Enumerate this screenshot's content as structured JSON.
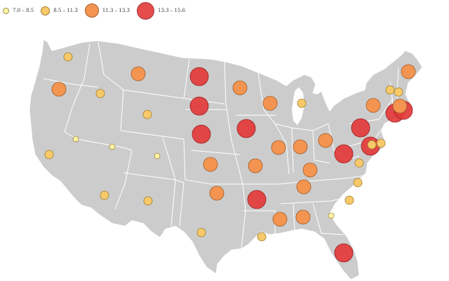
{
  "legend": {
    "items": [
      {
        "label": "7.0 – 8.5",
        "color": "#fff3a8",
        "stroke": "#9c8a3c"
      },
      {
        "label": "8.5 – 11.3",
        "color": "#f8c96a",
        "stroke": "#9c7a2c"
      },
      {
        "label": "11.3 – 13.3",
        "color": "#f39551",
        "stroke": "#a25a26"
      },
      {
        "label": "13.3 – 15.6",
        "color": "#e33a3a",
        "stroke": "#9a1f1f"
      }
    ]
  },
  "map": {
    "land_color": "#cccccc",
    "border_color": "#ffffff",
    "region": "Contiguous United States",
    "category_bounds": [
      7.0,
      8.5,
      11.3,
      13.3,
      15.6
    ]
  },
  "symbols": [
    {
      "state": "WA",
      "category": 1
    },
    {
      "state": "OR",
      "category": 2
    },
    {
      "state": "CA",
      "category": 1
    },
    {
      "state": "NV",
      "category": 0
    },
    {
      "state": "ID",
      "category": 1
    },
    {
      "state": "MT",
      "category": 2
    },
    {
      "state": "WY",
      "category": 1
    },
    {
      "state": "UT",
      "category": 0
    },
    {
      "state": "CO",
      "category": 0
    },
    {
      "state": "AZ",
      "category": 1
    },
    {
      "state": "NM",
      "category": 1
    },
    {
      "state": "ND",
      "category": 3
    },
    {
      "state": "SD",
      "category": 3
    },
    {
      "state": "NE",
      "category": 3
    },
    {
      "state": "KS",
      "category": 2
    },
    {
      "state": "OK",
      "category": 2
    },
    {
      "state": "TX",
      "category": 1
    },
    {
      "state": "MN",
      "category": 2
    },
    {
      "state": "IA",
      "category": 3
    },
    {
      "state": "MO",
      "category": 2
    },
    {
      "state": "AR",
      "category": 3
    },
    {
      "state": "LA",
      "category": 1
    },
    {
      "state": "WI",
      "category": 2
    },
    {
      "state": "MI",
      "category": 1
    },
    {
      "state": "IL",
      "category": 2
    },
    {
      "state": "IN",
      "category": 2
    },
    {
      "state": "OH",
      "category": 2
    },
    {
      "state": "KY",
      "category": 2
    },
    {
      "state": "TN",
      "category": 2
    },
    {
      "state": "MS",
      "category": 2
    },
    {
      "state": "AL",
      "category": 2
    },
    {
      "state": "GA",
      "category": 0
    },
    {
      "state": "FL",
      "category": 3
    },
    {
      "state": "SC",
      "category": 1
    },
    {
      "state": "NC",
      "category": 1
    },
    {
      "state": "VA",
      "category": 1
    },
    {
      "state": "WV",
      "category": 3
    },
    {
      "state": "PA",
      "category": 3
    },
    {
      "state": "MD",
      "category": 3
    },
    {
      "state": "DE",
      "category": 1
    },
    {
      "state": "NJ",
      "category": 1
    },
    {
      "state": "NY",
      "category": 2
    },
    {
      "state": "CT",
      "category": 3
    },
    {
      "state": "RI",
      "category": 3
    },
    {
      "state": "MA",
      "category": 2
    },
    {
      "state": "VT",
      "category": 1
    },
    {
      "state": "NH",
      "category": 1
    },
    {
      "state": "ME",
      "category": 2
    }
  ]
}
